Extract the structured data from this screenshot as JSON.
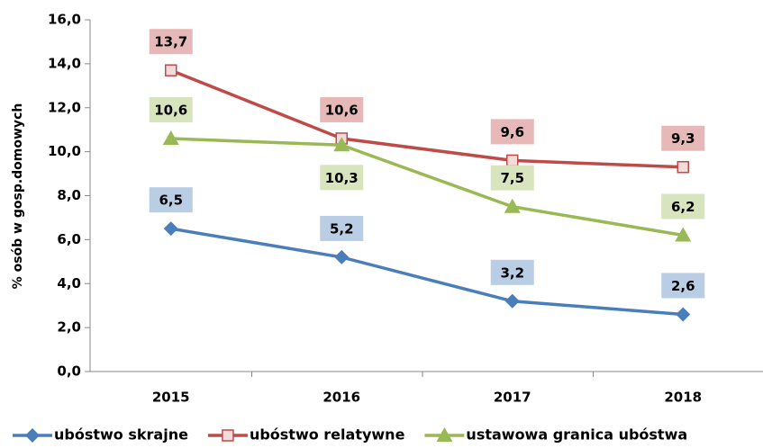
{
  "chart_data": {
    "type": "line",
    "y_label": "% osób w gosp.domowych",
    "categories": [
      "2015",
      "2016",
      "2017",
      "2018"
    ],
    "series": [
      {
        "name": "ubóstwo skrajne",
        "color": "#4a7ebb",
        "marker": "diamond",
        "label_color": "#b9cde5",
        "values": [
          6.5,
          5.2,
          3.2,
          2.6
        ],
        "value_labels": [
          "6,5",
          "5,2",
          "3,2",
          "2,6"
        ]
      },
      {
        "name": "ubóstwo relatywne",
        "color": "#be4b48",
        "marker": "square",
        "label_color": "#e6b9b8",
        "values": [
          13.7,
          10.6,
          9.6,
          9.3
        ],
        "value_labels": [
          "13,7",
          "10,6",
          "9,6",
          "9,3"
        ]
      },
      {
        "name": "ustawowa granica ubóstwa",
        "color": "#98b954",
        "marker": "triangle",
        "label_color": "#d7e4bd",
        "values": [
          10.6,
          10.3,
          7.5,
          6.2
        ],
        "value_labels": [
          "10,6",
          "10,3",
          "7,5",
          "6,2"
        ]
      }
    ],
    "ylim": [
      0,
      16
    ],
    "yticks": [
      {
        "value": 0,
        "label": "0,0"
      },
      {
        "value": 2,
        "label": "2,0"
      },
      {
        "value": 4,
        "label": "4,0"
      },
      {
        "value": 6,
        "label": "6,0"
      },
      {
        "value": 8,
        "label": "8,0"
      },
      {
        "value": 10,
        "label": "10,0"
      },
      {
        "value": 12,
        "label": "12,0"
      },
      {
        "value": 14,
        "label": "14,0"
      },
      {
        "value": 16,
        "label": "16,0"
      }
    ],
    "grid": false,
    "legend": "bottom"
  }
}
